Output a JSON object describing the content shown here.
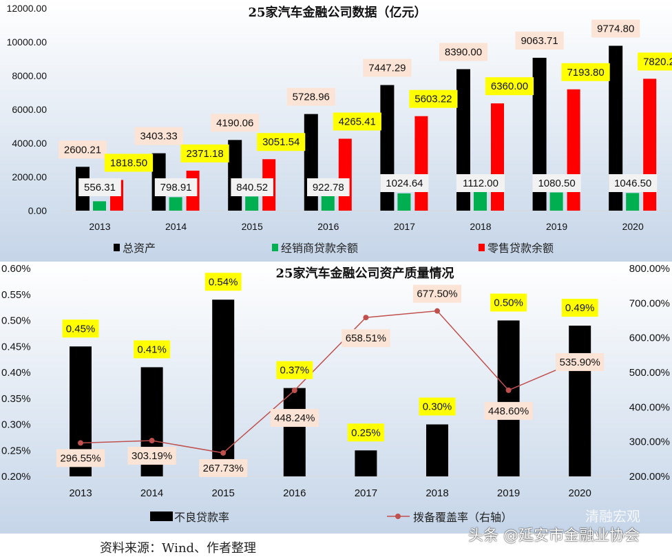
{
  "chart_data": [
    {
      "type": "bar",
      "title": "25家汽车金融公司数据（亿元）",
      "categories": [
        "2013",
        "2014",
        "2015",
        "2016",
        "2017",
        "2018",
        "2019",
        "2020"
      ],
      "ylim": [
        0,
        12000
      ],
      "yticks": [
        "0.00",
        "2000.00",
        "4000.00",
        "6000.00",
        "8000.00",
        "10000.00",
        "12000.00"
      ],
      "legend_position": "bottom",
      "series": [
        {
          "name": "总资产",
          "color": "#000000",
          "values": [
            2600.21,
            3403.33,
            4190.06,
            5728.96,
            7447.29,
            8390.0,
            9063.71,
            9774.8
          ],
          "labels": [
            "2600.21",
            "3403.33",
            "4190.06",
            "5728.96",
            "7447.29",
            "8390.00",
            "9063.71",
            "9774.80"
          ]
        },
        {
          "name": "经销商贷款余额",
          "color": "#00b050",
          "values": [
            556.31,
            798.91,
            840.52,
            922.78,
            1024.64,
            1112.0,
            1080.5,
            1046.5
          ],
          "labels": [
            "556.31",
            "798.91",
            "840.52",
            "922.78",
            "1024.64",
            "1112.00",
            "1080.50",
            "1046.50"
          ]
        },
        {
          "name": "零售贷款余额",
          "color": "#ff0000",
          "values": [
            1818.5,
            2371.18,
            3051.54,
            4265.41,
            5603.22,
            6360.0,
            7193.8,
            7820.2
          ],
          "labels": [
            "1818.50",
            "2371.18",
            "3051.54",
            "4265.41",
            "5603.22",
            "6360.00",
            "7193.80",
            "7820.20"
          ]
        }
      ]
    },
    {
      "type": "bar+line",
      "title": "25家汽车金融公司资产质量情况",
      "categories": [
        "2013",
        "2014",
        "2015",
        "2016",
        "2017",
        "2018",
        "2019",
        "2020"
      ],
      "ylim_left": [
        0.2,
        0.6
      ],
      "yticks_left": [
        "0.20%",
        "0.25%",
        "0.30%",
        "0.35%",
        "0.40%",
        "0.45%",
        "0.50%",
        "0.55%",
        "0.60%"
      ],
      "ylim_right": [
        200,
        800
      ],
      "yticks_right": [
        "200.00%",
        "300.00%",
        "400.00%",
        "500.00%",
        "600.00%",
        "700.00%",
        "800.00%"
      ],
      "legend_position": "bottom",
      "series": [
        {
          "name": "不良贷款率",
          "axis": "left",
          "color": "#000000",
          "values": [
            0.45,
            0.41,
            0.54,
            0.37,
            0.25,
            0.3,
            0.5,
            0.49
          ],
          "labels": [
            "0.45%",
            "0.41%",
            "0.54%",
            "0.37%",
            "0.25%",
            "0.30%",
            "0.50%",
            "0.49%"
          ]
        },
        {
          "name": "拨备覆盖率（右轴）",
          "axis": "right",
          "color": "#c0504d",
          "values": [
            296.55,
            303.19,
            267.73,
            448.24,
            658.51,
            677.5,
            448.6,
            535.9
          ],
          "labels": [
            "296.55%",
            "303.19%",
            "267.73%",
            "448.24%",
            "658.51%",
            "677.50%",
            "448.60%",
            "535.90%"
          ]
        }
      ]
    }
  ],
  "source": "资料来源：Wind、作者整理",
  "watermark": "头条 @延安市金融业协会",
  "watermark2": "清融宏观"
}
